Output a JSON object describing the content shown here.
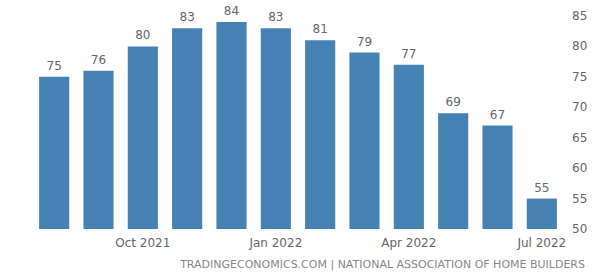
{
  "chart_data": {
    "type": "bar",
    "source": "TRADINGECONOMICS.COM | NATIONAL ASSOCIATION OF HOME BUILDERS",
    "categories": [
      null,
      null,
      "Oct 2021",
      null,
      null,
      "Jan 2022",
      null,
      null,
      "Apr 2022",
      null,
      null,
      "Jul 2022"
    ],
    "values": [
      75,
      76,
      80,
      83,
      84,
      83,
      81,
      79,
      77,
      69,
      67,
      55
    ],
    "color": "#4682b4",
    "ylim": [
      50,
      85
    ],
    "yticks": [
      50,
      55,
      60,
      65,
      70,
      75,
      80,
      85
    ],
    "grid": false,
    "data_labels": true
  }
}
